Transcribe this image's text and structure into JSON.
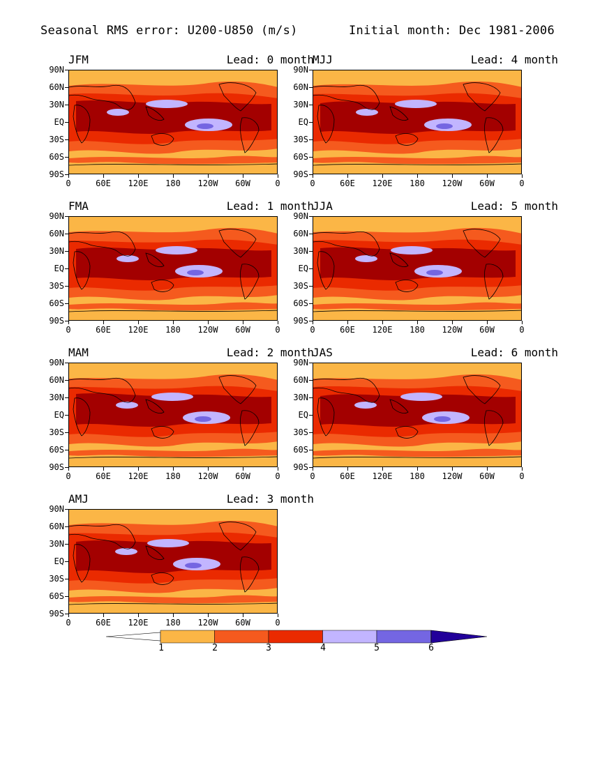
{
  "header": {
    "title": "Seasonal RMS error: U200-U850 (m/s)",
    "initial": "Initial month: Dec 1981-2006"
  },
  "axes": {
    "lat_labels": [
      "90N",
      "60N",
      "30N",
      "EQ",
      "30S",
      "60S",
      "90S"
    ],
    "lon_labels": [
      "0",
      "60E",
      "120E",
      "180",
      "120W",
      "60W",
      "0"
    ]
  },
  "panels": [
    {
      "season": "JFM",
      "lead": "Lead: 0 month"
    },
    {
      "season": "MJJ",
      "lead": "Lead: 4 month"
    },
    {
      "season": "FMA",
      "lead": "Lead: 1 month"
    },
    {
      "season": "JJA",
      "lead": "Lead: 5 month"
    },
    {
      "season": "MAM",
      "lead": "Lead: 2 month"
    },
    {
      "season": "JAS",
      "lead": "Lead: 6 month"
    },
    {
      "season": "AMJ",
      "lead": "Lead: 3 month"
    }
  ],
  "colorbar": {
    "labels": [
      "1",
      "2",
      "3",
      "4",
      "5",
      "6"
    ],
    "colors": [
      "#ffffff",
      "#fbb646",
      "#f55a1e",
      "#ea2a00",
      "#a30000",
      "#c2b5ff",
      "#7466e2",
      "#22009a"
    ]
  },
  "colors": {
    "c1": "#fbb646",
    "c2": "#f55a1e",
    "c3": "#ea2a00",
    "c4": "#a30000",
    "c5": "#c2b5ff",
    "c6": "#7466e2",
    "c7": "#22009a"
  }
}
